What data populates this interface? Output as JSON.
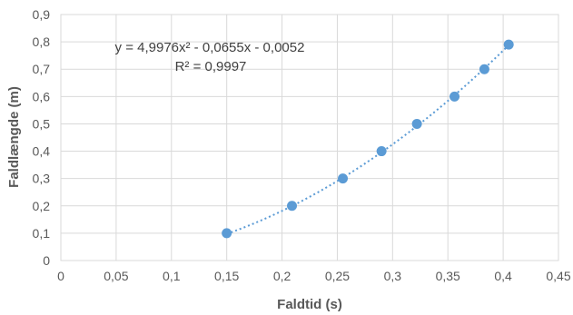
{
  "chart_data": {
    "type": "scatter",
    "xlabel": "Faldtid (s)",
    "ylabel": "Faldlængde (m)",
    "xlim": [
      0,
      0.45
    ],
    "ylim": [
      0,
      0.9
    ],
    "x_ticks": [
      "0",
      "0,05",
      "0,1",
      "0,15",
      "0,2",
      "0,25",
      "0,3",
      "0,35",
      "0,4",
      "0,45"
    ],
    "y_ticks": [
      "0",
      "0,1",
      "0,2",
      "0,3",
      "0,4",
      "0,5",
      "0,6",
      "0,7",
      "0,8",
      "0,9"
    ],
    "grid": true,
    "series": [
      {
        "x": [
          0.15,
          0.209,
          0.255,
          0.29,
          0.322,
          0.356,
          0.383,
          0.405
        ],
        "y": [
          0.1,
          0.2,
          0.3,
          0.4,
          0.5,
          0.6,
          0.7,
          0.79
        ]
      }
    ],
    "trendline": {
      "type": "polynomial",
      "coefficients": [
        4.9976,
        -0.0655,
        -0.0052
      ],
      "x_range": [
        0.15,
        0.405
      ]
    },
    "annotations": {
      "equation": "y = 4,9976x² - 0,0655x - 0,0052",
      "r_squared": "R² = 0,9997"
    },
    "colors": {
      "marker": "#5b9bd5",
      "trendline": "#5b9bd5"
    }
  }
}
